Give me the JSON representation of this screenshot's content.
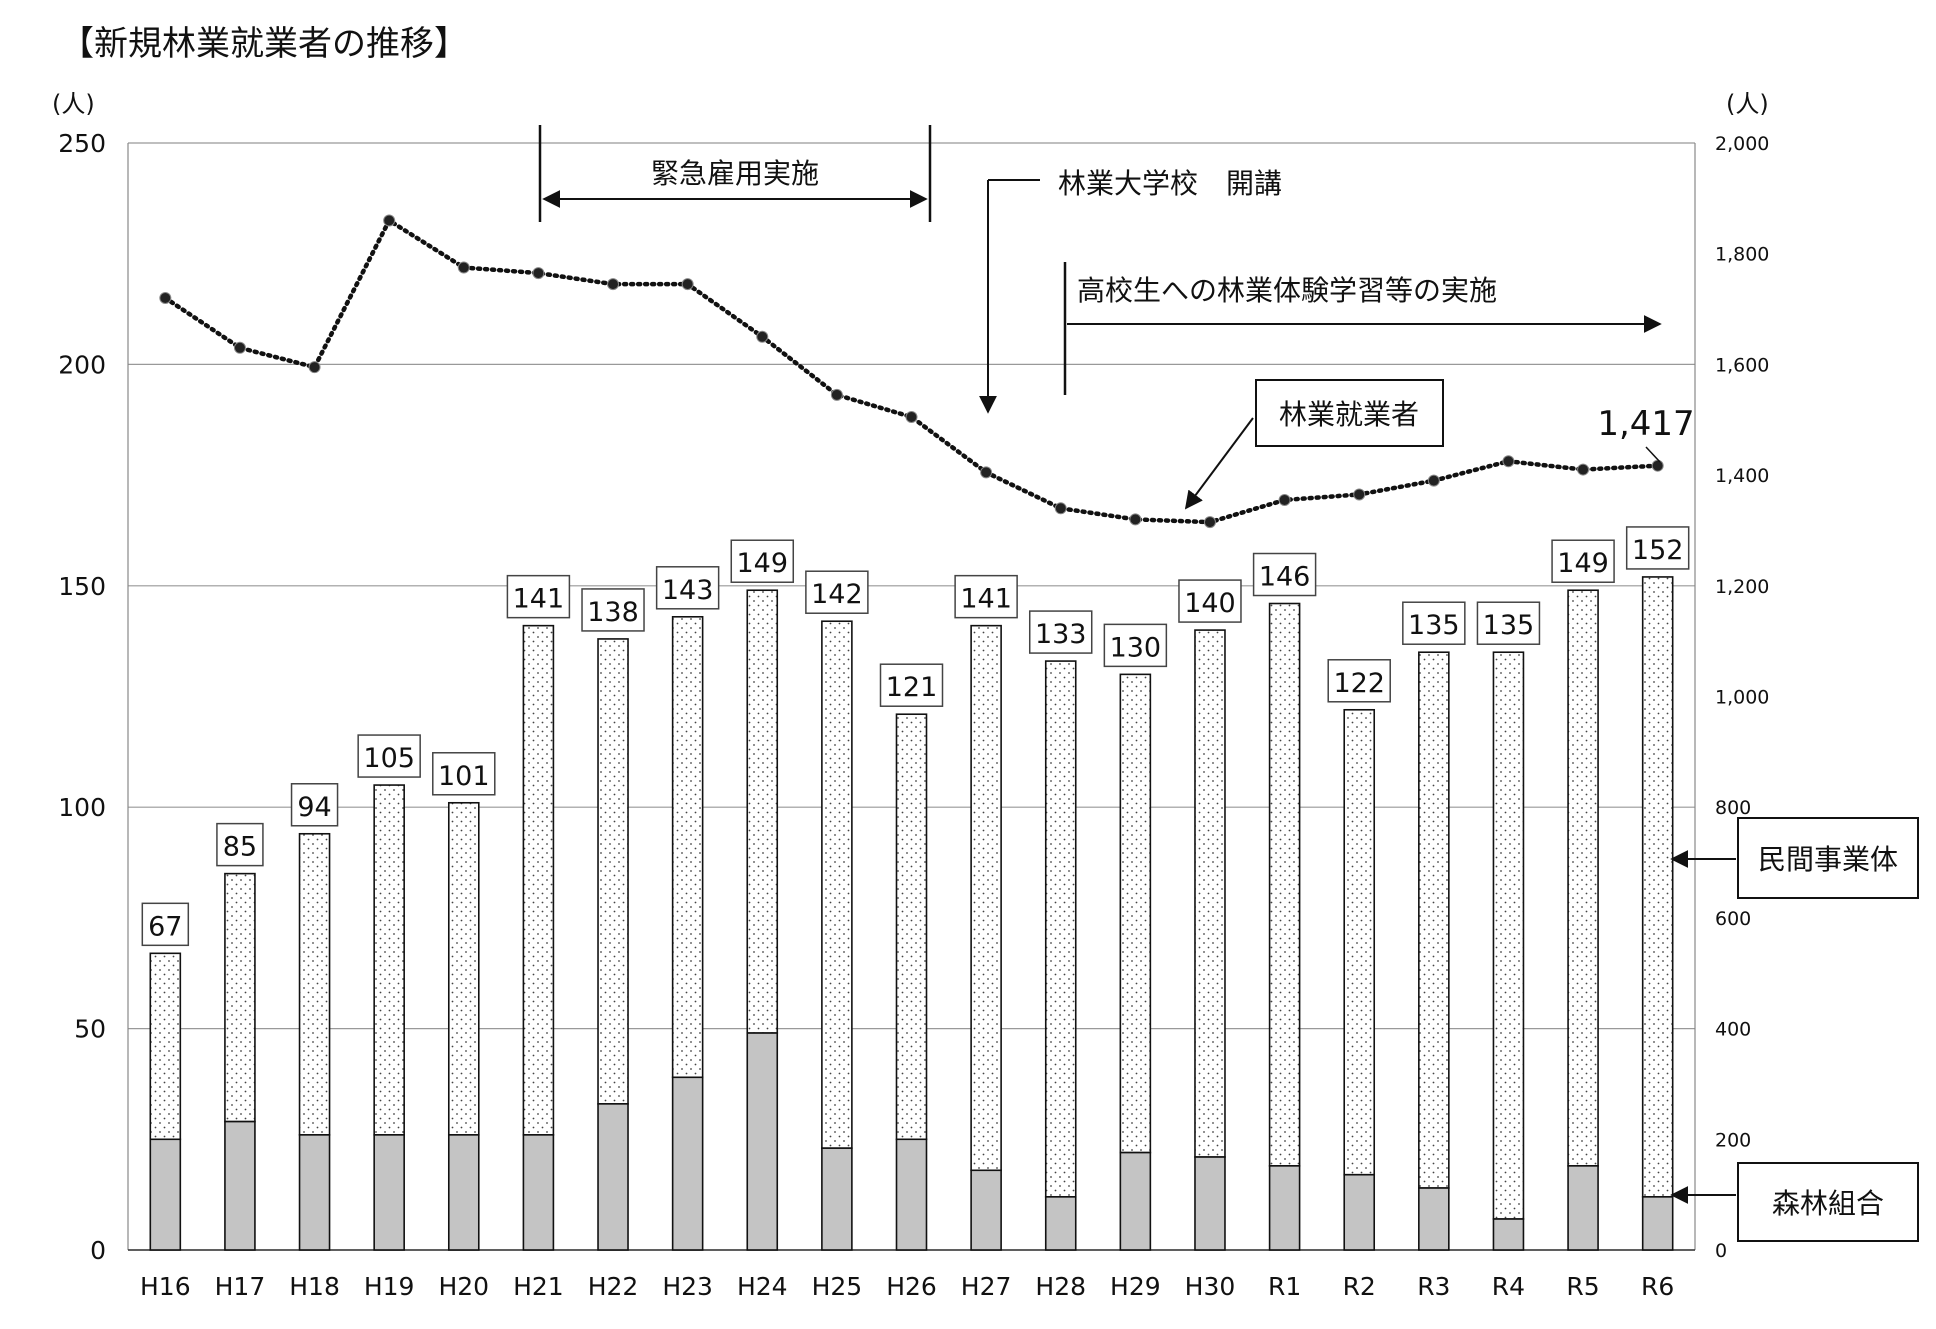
{
  "chart_data": {
    "type": "bar+line",
    "title": "【新規林業就業者の推移】",
    "left_axis": {
      "unit_label": "(人)",
      "range": [
        0,
        250
      ],
      "ticks": [
        "0",
        "50",
        "100",
        "150",
        "200",
        "250"
      ]
    },
    "right_axis": {
      "unit_label": "(人)",
      "range": [
        0,
        2000
      ],
      "ticks": [
        "0",
        "200",
        "400",
        "600",
        "800",
        "1,000",
        "1,200",
        "1,400",
        "1,600",
        "1,800",
        "2,000"
      ]
    },
    "grid": true,
    "categories": [
      "H16",
      "H17",
      "H18",
      "H19",
      "H20",
      "H21",
      "H22",
      "H23",
      "H24",
      "H25",
      "H26",
      "H27",
      "H28",
      "H29",
      "H30",
      "R1",
      "R2",
      "R3",
      "R4",
      "R5",
      "R6"
    ],
    "totals": [
      67,
      85,
      94,
      105,
      101,
      141,
      138,
      143,
      149,
      142,
      121,
      141,
      133,
      130,
      140,
      146,
      122,
      135,
      135,
      149,
      152
    ],
    "series": [
      {
        "name": "森林組合",
        "axis": "left",
        "fill": "#c4c4c4",
        "values": [
          25,
          29,
          26,
          26,
          26,
          26,
          33,
          39,
          49,
          23,
          25,
          18,
          12,
          22,
          21,
          19,
          17,
          14,
          7,
          19,
          12
        ]
      },
      {
        "name": "民間事業体",
        "axis": "left",
        "fill": "dotted",
        "values": [
          42,
          56,
          68,
          79,
          75,
          115,
          105,
          104,
          100,
          119,
          96,
          123,
          121,
          108,
          119,
          127,
          105,
          121,
          128,
          130,
          140
        ]
      },
      {
        "name": "林業就業者",
        "axis": "right",
        "type": "line",
        "style": "dotted",
        "values": [
          1720,
          1630,
          1595,
          1860,
          1775,
          1765,
          1745,
          1745,
          1650,
          1545,
          1505,
          1405,
          1340,
          1320,
          1315,
          1355,
          1365,
          1390,
          1425,
          1410,
          1417
        ]
      }
    ],
    "labels": {
      "line_last_value": "1,417",
      "line_callout": "林業就業者",
      "legend_private": "民間事業体",
      "legend_coop": "森林組合"
    },
    "annotations": {
      "emergency_employment": "緊急雇用実施",
      "forestry_college": "林業大学校　開講",
      "high_school": "高校生への林業体験学習等の実施"
    }
  }
}
